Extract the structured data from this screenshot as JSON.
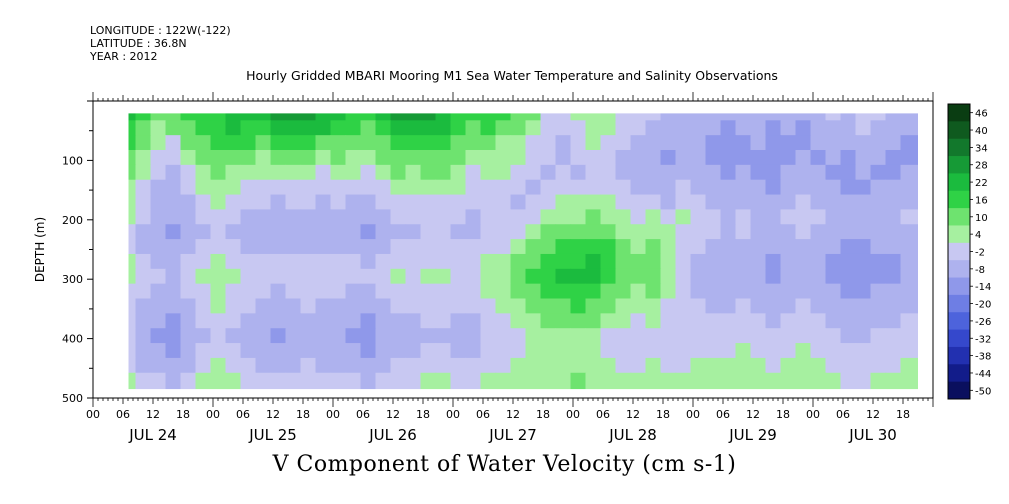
{
  "header": {
    "longitude": "LONGITUDE : 122W(-122)",
    "latitude": "LATITUDE : 36.8N",
    "year": "YEAR : 2012"
  },
  "chart_data": {
    "type": "heatmap",
    "title": "Hourly Gridded MBARI Mooring M1 Sea Water Temperature and Salinity Observations",
    "subtitle": "V Component of Water Velocity (cm s-1)",
    "ylabel": "DEPTH (m)",
    "y_axis_reversed": true,
    "ylim": [
      0,
      500
    ],
    "y_ticks": [
      100,
      200,
      300,
      400,
      500
    ],
    "x_range_hours": [
      0,
      168
    ],
    "x_tick_hour_labels": [
      "00",
      "06",
      "12",
      "18",
      "00",
      "06",
      "12",
      "18",
      "00",
      "06",
      "12",
      "18",
      "00",
      "06",
      "12",
      "18",
      "00",
      "06",
      "12",
      "18",
      "00",
      "06",
      "12",
      "18",
      "00",
      "06",
      "12",
      "18"
    ],
    "x_day_labels": [
      "JUL 24",
      "JUL 25",
      "JUL 26",
      "JUL 27",
      "JUL 28",
      "JUL 29",
      "JUL 30"
    ],
    "colorbar": {
      "levels": [
        46,
        40,
        34,
        28,
        22,
        16,
        10,
        4,
        -2,
        -8,
        -14,
        -20,
        -26,
        -32,
        -38,
        -44,
        -50
      ],
      "colors": [
        "#0a3d12",
        "#0f5a1f",
        "#12782c",
        "#169a36",
        "#1bbb3e",
        "#2fd246",
        "#6ee36f",
        "#a6f0a0",
        "#c8c8f2",
        "#aeb2ee",
        "#8f98ea",
        "#6e7ee4",
        "#4d63dc",
        "#3548cc",
        "#2230b0",
        "#121c8a",
        "#0a0f5e"
      ]
    },
    "grid_description": "Depth-time section; columns = hourly samples, rows = depth bins. Values estimated (cm/s).",
    "time_start_hour": 7,
    "time_end_hour": 165,
    "depth_top_m": 20,
    "depth_bottom_m": 485,
    "hours": [
      7,
      10,
      13,
      16,
      19,
      22,
      25,
      28,
      31,
      34,
      37,
      40,
      43,
      46,
      49,
      52,
      55,
      58,
      61,
      64,
      67,
      70,
      73,
      76,
      79,
      82,
      85,
      88,
      91,
      94,
      97,
      100,
      103,
      106,
      109,
      112,
      115,
      118,
      121,
      124,
      127,
      130,
      133,
      136,
      139,
      142,
      145,
      148,
      151,
      154,
      157,
      160,
      163
    ],
    "depths": [
      20,
      45,
      70,
      95,
      120,
      145,
      170,
      195,
      220,
      245,
      270,
      295,
      320,
      345,
      370,
      395,
      420,
      445,
      470
    ],
    "values": [
      [
        16,
        10,
        4,
        6,
        10,
        12,
        14,
        20,
        18,
        16,
        22,
        26,
        24,
        20,
        16,
        14,
        12,
        16,
        24,
        22,
        22,
        20,
        12,
        10,
        14,
        10,
        6,
        4,
        -4,
        -6,
        -2,
        2,
        0,
        -4,
        -6,
        -8,
        -10,
        -12,
        -10,
        -12,
        -14,
        -12,
        -10,
        -14,
        -12,
        -14,
        -10,
        -8,
        -10,
        -6,
        -8,
        -10,
        -12
      ],
      [
        14,
        8,
        2,
        4,
        8,
        10,
        12,
        16,
        14,
        12,
        16,
        20,
        18,
        16,
        12,
        10,
        8,
        12,
        18,
        16,
        18,
        16,
        10,
        8,
        10,
        6,
        4,
        0,
        -6,
        -8,
        -4,
        0,
        -2,
        -6,
        -8,
        -10,
        -12,
        -14,
        -12,
        -14,
        -16,
        -14,
        -12,
        -16,
        -14,
        -16,
        -12,
        -10,
        -12,
        -8,
        -10,
        -12,
        -14
      ],
      [
        12,
        6,
        -2,
        -4,
        4,
        8,
        10,
        12,
        10,
        8,
        10,
        12,
        10,
        8,
        8,
        6,
        4,
        8,
        12,
        10,
        12,
        12,
        6,
        4,
        6,
        2,
        0,
        -4,
        -8,
        -10,
        -6,
        -2,
        -4,
        -8,
        -10,
        -12,
        -14,
        -14,
        -14,
        -16,
        -16,
        -16,
        -14,
        -18,
        -16,
        -16,
        -14,
        -12,
        -14,
        -10,
        -12,
        -14,
        -16
      ],
      [
        8,
        2,
        -6,
        -8,
        0,
        4,
        8,
        6,
        4,
        2,
        4,
        6,
        4,
        2,
        4,
        2,
        0,
        4,
        8,
        6,
        8,
        8,
        4,
        0,
        2,
        0,
        -2,
        -6,
        -8,
        -10,
        -8,
        -4,
        -6,
        -10,
        -12,
        -14,
        -16,
        -14,
        -14,
        -16,
        -18,
        -16,
        -16,
        -20,
        -16,
        -14,
        -16,
        -14,
        -16,
        -12,
        -14,
        -16,
        -16
      ],
      [
        4,
        -2,
        -8,
        -10,
        -4,
        2,
        6,
        2,
        0,
        -2,
        -2,
        0,
        -2,
        -4,
        0,
        -2,
        -4,
        0,
        4,
        2,
        4,
        4,
        2,
        -4,
        -2,
        -2,
        -6,
        -8,
        -10,
        -8,
        -10,
        -6,
        -8,
        -12,
        -14,
        -12,
        -14,
        -12,
        -12,
        -14,
        -16,
        -14,
        -16,
        -18,
        -14,
        -12,
        -14,
        -16,
        -18,
        -14,
        -16,
        -16,
        -14
      ],
      [
        2,
        -4,
        -10,
        -12,
        -8,
        -2,
        2,
        -2,
        -4,
        -6,
        -6,
        -4,
        -6,
        -8,
        -4,
        -6,
        -8,
        -4,
        0,
        -2,
        0,
        0,
        -2,
        -6,
        -4,
        -6,
        -8,
        -10,
        -8,
        -6,
        -6,
        -4,
        -4,
        -8,
        -10,
        -10,
        -12,
        -8,
        -10,
        -12,
        -14,
        -12,
        -14,
        -16,
        -12,
        -10,
        -12,
        -14,
        -16,
        -16,
        -14,
        -14,
        -12
      ],
      [
        0,
        -6,
        -12,
        -14,
        -10,
        -6,
        -2,
        -6,
        -8,
        -8,
        -10,
        -8,
        -8,
        -10,
        -8,
        -10,
        -12,
        -8,
        -4,
        -6,
        -4,
        -4,
        -6,
        -8,
        -6,
        -8,
        -10,
        -8,
        -4,
        -2,
        -2,
        0,
        -2,
        -6,
        -8,
        -6,
        -10,
        -4,
        -8,
        -10,
        -12,
        -10,
        -12,
        -14,
        -10,
        -8,
        -10,
        -12,
        -14,
        -14,
        -12,
        -12,
        -10
      ],
      [
        -2,
        -8,
        -12,
        -14,
        -12,
        -8,
        -4,
        -8,
        -10,
        -10,
        -12,
        -10,
        -10,
        -12,
        -10,
        -12,
        -14,
        -10,
        -8,
        -8,
        -6,
        -6,
        -8,
        -10,
        -8,
        -8,
        -8,
        -4,
        0,
        2,
        2,
        4,
        2,
        -2,
        -4,
        -2,
        -6,
        -2,
        -4,
        -8,
        -10,
        -8,
        -10,
        -12,
        -8,
        -6,
        -8,
        -10,
        -12,
        -12,
        -10,
        -10,
        -8
      ],
      [
        -4,
        -10,
        -14,
        -16,
        -14,
        -10,
        -6,
        -10,
        -12,
        -12,
        -14,
        -12,
        -12,
        -14,
        -12,
        -14,
        -16,
        -12,
        -10,
        -10,
        -8,
        -8,
        -10,
        -10,
        -8,
        -6,
        -4,
        0,
        4,
        6,
        6,
        8,
        6,
        2,
        0,
        2,
        -2,
        -4,
        -6,
        -8,
        -10,
        -8,
        -10,
        -12,
        -10,
        -8,
        -10,
        -12,
        -14,
        -14,
        -12,
        -12,
        -10
      ],
      [
        -4,
        -10,
        -12,
        -14,
        -12,
        -8,
        -4,
        -8,
        -10,
        -10,
        -12,
        -10,
        -10,
        -12,
        -10,
        -12,
        -14,
        -10,
        -8,
        -8,
        -6,
        -6,
        -8,
        -8,
        -6,
        -4,
        0,
        4,
        8,
        10,
        10,
        12,
        10,
        6,
        2,
        4,
        0,
        -6,
        -8,
        -10,
        -12,
        -10,
        -12,
        -14,
        -12,
        -10,
        -12,
        -14,
        -16,
        -16,
        -14,
        -14,
        -12
      ],
      [
        -2,
        -8,
        -10,
        -12,
        -8,
        -4,
        0,
        -4,
        -6,
        -6,
        -8,
        -6,
        -6,
        -8,
        -6,
        -8,
        -10,
        -6,
        -4,
        -6,
        -4,
        -4,
        -6,
        -6,
        -2,
        0,
        4,
        8,
        12,
        14,
        14,
        16,
        12,
        8,
        4,
        6,
        2,
        -8,
        -10,
        -12,
        -14,
        -12,
        -14,
        -16,
        -14,
        -12,
        -14,
        -16,
        -18,
        -18,
        -16,
        -16,
        -14
      ],
      [
        -2,
        -6,
        -8,
        -10,
        -6,
        -2,
        2,
        -2,
        -4,
        -4,
        -6,
        -4,
        -4,
        -6,
        -4,
        -6,
        -8,
        -4,
        -2,
        -4,
        -2,
        -2,
        -4,
        -4,
        0,
        2,
        6,
        10,
        14,
        16,
        16,
        16,
        12,
        8,
        4,
        6,
        2,
        -8,
        -10,
        -12,
        -14,
        -12,
        -14,
        -16,
        -14,
        -12,
        -14,
        -16,
        -18,
        -18,
        -16,
        -16,
        -14
      ],
      [
        -4,
        -8,
        -10,
        -12,
        -8,
        -4,
        0,
        -4,
        -6,
        -8,
        -10,
        -8,
        -6,
        -8,
        -8,
        -10,
        -12,
        -8,
        -6,
        -6,
        -4,
        -4,
        -6,
        -6,
        -2,
        0,
        4,
        8,
        12,
        12,
        14,
        12,
        8,
        6,
        2,
        4,
        0,
        -8,
        -10,
        -12,
        -12,
        -10,
        -12,
        -14,
        -12,
        -10,
        -12,
        -14,
        -16,
        -16,
        -14,
        -14,
        -12
      ],
      [
        -6,
        -10,
        -12,
        -14,
        -10,
        -6,
        -2,
        -6,
        -8,
        -10,
        -12,
        -10,
        -8,
        -10,
        -10,
        -12,
        -14,
        -10,
        -8,
        -8,
        -6,
        -6,
        -8,
        -8,
        -4,
        -2,
        0,
        4,
        8,
        8,
        10,
        8,
        4,
        2,
        -2,
        0,
        -4,
        -8,
        -8,
        -10,
        -10,
        -8,
        -10,
        -12,
        -10,
        -8,
        -10,
        -12,
        -14,
        -14,
        -12,
        -12,
        -10
      ],
      [
        -8,
        -12,
        -14,
        -16,
        -12,
        -8,
        -4,
        -8,
        -10,
        -12,
        -14,
        -12,
        -10,
        -12,
        -12,
        -14,
        -16,
        -12,
        -10,
        -10,
        -8,
        -8,
        -10,
        -10,
        -6,
        -4,
        -2,
        0,
        4,
        4,
        6,
        4,
        0,
        -2,
        -4,
        -2,
        -6,
        -8,
        -6,
        -8,
        -8,
        -6,
        -8,
        -10,
        -8,
        -6,
        -8,
        -10,
        -12,
        -12,
        -10,
        -10,
        -8
      ],
      [
        -8,
        -14,
        -16,
        -18,
        -14,
        -10,
        -6,
        -10,
        -12,
        -14,
        -16,
        -14,
        -12,
        -14,
        -14,
        -16,
        -18,
        -14,
        -12,
        -12,
        -10,
        -10,
        -12,
        -12,
        -8,
        -6,
        -4,
        -2,
        0,
        0,
        2,
        0,
        -4,
        -6,
        -6,
        -4,
        -8,
        -8,
        -6,
        -6,
        -6,
        -4,
        -6,
        -8,
        -6,
        -4,
        -6,
        -8,
        -10,
        -10,
        -8,
        -8,
        -6
      ],
      [
        -6,
        -12,
        -14,
        -16,
        -12,
        -8,
        -4,
        -8,
        -10,
        -12,
        -14,
        -12,
        -10,
        -12,
        -12,
        -14,
        -16,
        -12,
        -10,
        -10,
        -8,
        -8,
        -10,
        -10,
        -6,
        -6,
        -4,
        -2,
        -2,
        -2,
        0,
        -2,
        -4,
        -6,
        -6,
        -4,
        -6,
        -6,
        -4,
        -4,
        -4,
        -2,
        -4,
        -6,
        -4,
        -2,
        -4,
        -6,
        -8,
        -8,
        -6,
        -6,
        -4
      ],
      [
        -4,
        -10,
        -12,
        -14,
        -10,
        -6,
        -2,
        -6,
        -8,
        -10,
        -12,
        -10,
        -8,
        -10,
        -10,
        -12,
        -14,
        -10,
        -8,
        -8,
        -6,
        -6,
        -8,
        -8,
        -4,
        -4,
        -2,
        0,
        0,
        0,
        2,
        0,
        -2,
        -4,
        -4,
        -2,
        -4,
        -4,
        -2,
        -2,
        -2,
        0,
        -2,
        -4,
        -2,
        0,
        -2,
        -4,
        -6,
        -6,
        -4,
        -4,
        -2
      ],
      [
        -2,
        -6,
        -8,
        -10,
        -6,
        -2,
        0,
        -2,
        -4,
        -6,
        -8,
        -6,
        -4,
        -6,
        -6,
        -8,
        -10,
        -6,
        -4,
        -4,
        -2,
        -2,
        -4,
        -4,
        -2,
        -2,
        0,
        2,
        2,
        2,
        4,
        2,
        0,
        -2,
        -2,
        0,
        -2,
        -2,
        0,
        0,
        0,
        2,
        0,
        -2,
        0,
        2,
        0,
        -2,
        -4,
        -4,
        -2,
        -2,
        0
      ]
    ]
  }
}
